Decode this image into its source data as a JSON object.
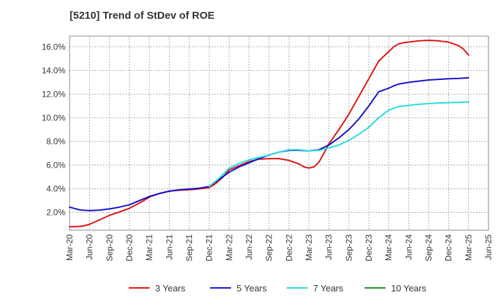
{
  "chart_data": {
    "type": "line",
    "title": "[5210]  Trend of StDev of ROE",
    "xlabel": "",
    "ylabel": "",
    "x_tick_labels": [
      "Mar-20",
      "Jun-20",
      "Sep-20",
      "Dec-20",
      "Mar-21",
      "Jun-21",
      "Sep-21",
      "Dec-21",
      "Mar-22",
      "Jun-22",
      "Sep-22",
      "Dec-22",
      "Mar-23",
      "Jun-23",
      "Sep-23",
      "Dec-23",
      "Mar-24",
      "Jun-24",
      "Sep-24",
      "Dec-24",
      "Mar-25",
      "Jun-25"
    ],
    "y_ticks": [
      2.0,
      4.0,
      6.0,
      8.0,
      10.0,
      12.0,
      14.0,
      16.0
    ],
    "y_tick_labels": [
      "2.0%",
      "4.0%",
      "6.0%",
      "8.0%",
      "10.0%",
      "12.0%",
      "14.0%",
      "16.0%"
    ],
    "ylim": [
      0.5,
      16.9
    ],
    "x_range_quarters": [
      0,
      21
    ],
    "grid": true,
    "legend_position": "bottom",
    "series": [
      {
        "name": "3 Years",
        "color": "#dd1111",
        "x": [
          0,
          0.33,
          0.67,
          1,
          1.33,
          1.67,
          2,
          2.5,
          3,
          3.33,
          3.67,
          4,
          4.5,
          5,
          5.5,
          6,
          6.5,
          7,
          7.33,
          7.67,
          8,
          8.5,
          9,
          9.5,
          10,
          10.5,
          11,
          11.5,
          11.75,
          12,
          12.25,
          12.5,
          12.75,
          13,
          13.5,
          14,
          14.5,
          15,
          15.5,
          16,
          16.25,
          16.5,
          16.75,
          17,
          17.5,
          18,
          18.5,
          19,
          19.5,
          19.75,
          20
        ],
        "y": [
          0.8,
          0.8,
          0.85,
          1.0,
          1.25,
          1.5,
          1.75,
          2.05,
          2.35,
          2.65,
          2.95,
          3.3,
          3.6,
          3.8,
          3.88,
          3.92,
          4.0,
          4.1,
          4.45,
          4.95,
          5.6,
          5.95,
          6.3,
          6.5,
          6.55,
          6.55,
          6.4,
          6.1,
          5.85,
          5.75,
          5.85,
          6.25,
          7.0,
          7.8,
          9.0,
          10.3,
          11.8,
          13.3,
          14.8,
          15.6,
          16.0,
          16.25,
          16.35,
          16.4,
          16.5,
          16.55,
          16.5,
          16.4,
          16.1,
          15.8,
          15.3
        ]
      },
      {
        "name": "5 Years",
        "color": "#1111cc",
        "x": [
          0,
          0.5,
          1,
          1.5,
          2,
          2.5,
          3,
          3.5,
          4,
          4.5,
          5,
          5.5,
          6,
          6.5,
          7,
          7.5,
          8,
          8.5,
          9,
          9.5,
          10,
          10.5,
          11,
          11.5,
          12,
          12.5,
          13,
          13.5,
          14,
          14.5,
          15,
          15.5,
          16,
          16.25,
          16.5,
          17,
          17.5,
          18,
          18.5,
          19,
          19.5,
          20
        ],
        "y": [
          2.45,
          2.22,
          2.15,
          2.2,
          2.3,
          2.45,
          2.65,
          3.0,
          3.35,
          3.6,
          3.8,
          3.92,
          3.98,
          4.05,
          4.2,
          4.8,
          5.4,
          5.85,
          6.2,
          6.55,
          6.85,
          7.1,
          7.25,
          7.25,
          7.2,
          7.3,
          7.7,
          8.3,
          9.0,
          9.9,
          11.0,
          12.2,
          12.5,
          12.7,
          12.85,
          13.0,
          13.1,
          13.2,
          13.25,
          13.3,
          13.33,
          13.38
        ]
      },
      {
        "name": "7 Years",
        "color": "#22dddd",
        "x": [
          7,
          7.5,
          8,
          8.5,
          9,
          9.5,
          10,
          10.5,
          11,
          11.5,
          12,
          12.5,
          13,
          13.5,
          14,
          14.5,
          15,
          15.5,
          16,
          16.5,
          17,
          17.5,
          18,
          18.5,
          19,
          19.5,
          20
        ],
        "y": [
          4.2,
          4.9,
          5.75,
          6.15,
          6.45,
          6.65,
          6.85,
          7.1,
          7.3,
          7.3,
          7.2,
          7.25,
          7.45,
          7.7,
          8.1,
          8.6,
          9.2,
          10.0,
          10.65,
          10.95,
          11.05,
          11.15,
          11.2,
          11.25,
          11.28,
          11.3,
          11.33
        ]
      },
      {
        "name": "10 Years",
        "color": "#228822",
        "x": [],
        "y": []
      }
    ]
  }
}
